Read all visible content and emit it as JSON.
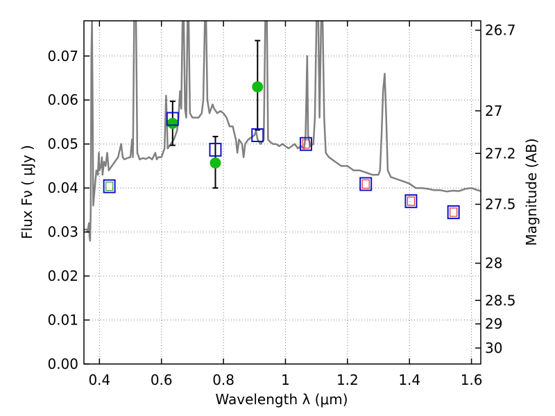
{
  "chart_data": {
    "type": "scatter",
    "xlabel": "Wavelength  λ (μm)",
    "ylabel": "Flux  Fν  ( μJy )",
    "y2label": "Magnitude (AB)",
    "xlim": [
      0.35,
      1.63
    ],
    "ylim": [
      0.0,
      0.078
    ],
    "grid": true,
    "x_ticks": [
      0.4,
      0.6,
      0.8,
      1.0,
      1.2,
      1.4,
      1.6
    ],
    "x_tick_labels": [
      "0.4",
      "0.6",
      "0.8",
      "1",
      "1.2",
      "1.4",
      "1.6"
    ],
    "y_ticks": [
      0.0,
      0.01,
      0.02,
      0.03,
      0.04,
      0.05,
      0.06,
      0.07
    ],
    "y_tick_labels": [
      "0.00",
      "0.01",
      "0.02",
      "0.03",
      "0.04",
      "0.05",
      "0.06",
      "0.07"
    ],
    "mag_ticks": [
      26.7,
      27,
      27.2,
      27.5,
      28,
      28.5,
      29,
      30
    ],
    "mag_tick_labels": [
      "26.7",
      "27",
      "27.2",
      "27.5",
      "28",
      "28.5",
      "29",
      "30"
    ],
    "colors": {
      "model_spectrum": "#808080",
      "observed": "#11bb11",
      "model_box_outer": "#1111cc",
      "model_box_inner_red": "#dd3333",
      "model_box_inner_green": "#33aa33"
    },
    "model_spectrum": [
      [
        0.35,
        0.0305
      ],
      [
        0.36,
        0.0306
      ],
      [
        0.362,
        0.03
      ],
      [
        0.364,
        0.031
      ],
      [
        0.366,
        0.032
      ],
      [
        0.368,
        0.029
      ],
      [
        0.37,
        0.028
      ],
      [
        0.372,
        0.035
      ],
      [
        0.374,
        0.07
      ],
      [
        0.376,
        0.078
      ],
      [
        0.378,
        0.06
      ],
      [
        0.38,
        0.036
      ],
      [
        0.385,
        0.04
      ],
      [
        0.39,
        0.044
      ],
      [
        0.395,
        0.043
      ],
      [
        0.398,
        0.048
      ],
      [
        0.4,
        0.044
      ],
      [
        0.405,
        0.045
      ],
      [
        0.408,
        0.047
      ],
      [
        0.41,
        0.043
      ],
      [
        0.415,
        0.046
      ],
      [
        0.42,
        0.045
      ],
      [
        0.425,
        0.048
      ],
      [
        0.43,
        0.044
      ],
      [
        0.44,
        0.045
      ],
      [
        0.45,
        0.046
      ],
      [
        0.46,
        0.047
      ],
      [
        0.47,
        0.05
      ],
      [
        0.475,
        0.047
      ],
      [
        0.48,
        0.0465
      ],
      [
        0.49,
        0.0468
      ],
      [
        0.5,
        0.047
      ],
      [
        0.505,
        0.051
      ],
      [
        0.508,
        0.047
      ],
      [
        0.512,
        0.078
      ],
      [
        0.518,
        0.078
      ],
      [
        0.522,
        0.048
      ],
      [
        0.53,
        0.0465
      ],
      [
        0.54,
        0.0468
      ],
      [
        0.55,
        0.0466
      ],
      [
        0.56,
        0.047
      ],
      [
        0.57,
        0.0465
      ],
      [
        0.58,
        0.048
      ],
      [
        0.585,
        0.0465
      ],
      [
        0.59,
        0.047
      ],
      [
        0.6,
        0.047
      ],
      [
        0.61,
        0.049
      ],
      [
        0.615,
        0.061
      ],
      [
        0.62,
        0.049
      ],
      [
        0.63,
        0.05
      ],
      [
        0.64,
        0.051
      ],
      [
        0.65,
        0.053
      ],
      [
        0.655,
        0.056
      ],
      [
        0.66,
        0.062
      ],
      [
        0.664,
        0.058
      ],
      [
        0.668,
        0.078
      ],
      [
        0.672,
        0.078
      ],
      [
        0.676,
        0.058
      ],
      [
        0.68,
        0.056
      ],
      [
        0.684,
        0.078
      ],
      [
        0.688,
        0.078
      ],
      [
        0.692,
        0.057
      ],
      [
        0.7,
        0.056
      ],
      [
        0.71,
        0.056
      ],
      [
        0.72,
        0.056
      ],
      [
        0.73,
        0.057
      ],
      [
        0.735,
        0.06
      ],
      [
        0.74,
        0.078
      ],
      [
        0.744,
        0.078
      ],
      [
        0.748,
        0.06
      ],
      [
        0.755,
        0.057
      ],
      [
        0.76,
        0.058
      ],
      [
        0.765,
        0.059
      ],
      [
        0.77,
        0.058
      ],
      [
        0.78,
        0.057
      ],
      [
        0.79,
        0.0575
      ],
      [
        0.8,
        0.057
      ],
      [
        0.81,
        0.056
      ],
      [
        0.82,
        0.054
      ],
      [
        0.83,
        0.054
      ],
      [
        0.84,
        0.051
      ],
      [
        0.845,
        0.048
      ],
      [
        0.85,
        0.051
      ],
      [
        0.86,
        0.05
      ],
      [
        0.865,
        0.047
      ],
      [
        0.87,
        0.05
      ],
      [
        0.88,
        0.051
      ],
      [
        0.89,
        0.0515
      ],
      [
        0.9,
        0.052
      ],
      [
        0.905,
        0.053
      ],
      [
        0.91,
        0.051
      ],
      [
        0.92,
        0.05
      ],
      [
        0.93,
        0.051
      ],
      [
        0.935,
        0.078
      ],
      [
        0.94,
        0.078
      ],
      [
        0.944,
        0.051
      ],
      [
        0.95,
        0.0505
      ],
      [
        0.96,
        0.05
      ],
      [
        0.97,
        0.05
      ],
      [
        0.98,
        0.0495
      ],
      [
        0.99,
        0.05
      ],
      [
        1.0,
        0.0495
      ],
      [
        1.01,
        0.049
      ],
      [
        1.02,
        0.0495
      ],
      [
        1.03,
        0.05
      ],
      [
        1.04,
        0.049
      ],
      [
        1.05,
        0.0495
      ],
      [
        1.06,
        0.049
      ],
      [
        1.065,
        0.052
      ],
      [
        1.07,
        0.07
      ],
      [
        1.073,
        0.052
      ],
      [
        1.08,
        0.0495
      ],
      [
        1.09,
        0.05
      ],
      [
        1.095,
        0.056
      ],
      [
        1.1,
        0.078
      ],
      [
        1.106,
        0.078
      ],
      [
        1.11,
        0.056
      ],
      [
        1.115,
        0.078
      ],
      [
        1.12,
        0.078
      ],
      [
        1.125,
        0.056
      ],
      [
        1.13,
        0.048
      ],
      [
        1.14,
        0.047
      ],
      [
        1.16,
        0.046
      ],
      [
        1.18,
        0.045
      ],
      [
        1.2,
        0.045
      ],
      [
        1.22,
        0.044
      ],
      [
        1.24,
        0.044
      ],
      [
        1.26,
        0.0435
      ],
      [
        1.28,
        0.043
      ],
      [
        1.3,
        0.043
      ],
      [
        1.305,
        0.044
      ],
      [
        1.31,
        0.052
      ],
      [
        1.315,
        0.062
      ],
      [
        1.32,
        0.066
      ],
      [
        1.325,
        0.056
      ],
      [
        1.33,
        0.044
      ],
      [
        1.34,
        0.0425
      ],
      [
        1.36,
        0.042
      ],
      [
        1.38,
        0.0415
      ],
      [
        1.4,
        0.041
      ],
      [
        1.42,
        0.04
      ],
      [
        1.44,
        0.04
      ],
      [
        1.46,
        0.0398
      ],
      [
        1.48,
        0.0395
      ],
      [
        1.5,
        0.0395
      ],
      [
        1.52,
        0.0392
      ],
      [
        1.54,
        0.0394
      ],
      [
        1.56,
        0.0393
      ],
      [
        1.58,
        0.0398
      ],
      [
        1.6,
        0.04
      ],
      [
        1.62,
        0.0395
      ],
      [
        1.63,
        0.0393
      ]
    ],
    "observed_photometry": [
      {
        "x": 0.636,
        "y": 0.0547,
        "yerr_low": 0.0497,
        "yerr_high": 0.0597
      },
      {
        "x": 0.774,
        "y": 0.0457,
        "yerr_low": 0.04,
        "yerr_high": 0.0517
      },
      {
        "x": 0.91,
        "y": 0.063,
        "yerr_low": 0.0532,
        "yerr_high": 0.0735
      }
    ],
    "model_photometry": [
      {
        "x": 0.432,
        "y": 0.0404,
        "inner": "green"
      },
      {
        "x": 0.636,
        "y": 0.0557,
        "inner": "none"
      },
      {
        "x": 0.774,
        "y": 0.0487,
        "inner": "none"
      },
      {
        "x": 0.91,
        "y": 0.052,
        "inner": "none"
      },
      {
        "x": 1.066,
        "y": 0.05,
        "inner": "red"
      },
      {
        "x": 1.259,
        "y": 0.0409,
        "inner": "red"
      },
      {
        "x": 1.405,
        "y": 0.037,
        "inner": "red"
      },
      {
        "x": 1.542,
        "y": 0.0345,
        "inner": "red"
      }
    ]
  }
}
